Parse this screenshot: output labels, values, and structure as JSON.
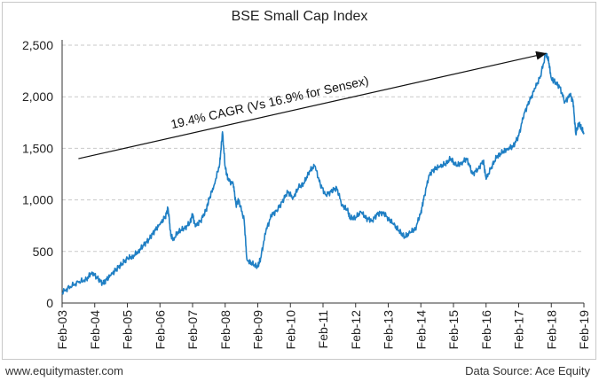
{
  "footer": {
    "left": "www.equitymaster.com",
    "right": "Data Source: Ace Equity"
  },
  "chart_data": {
    "type": "line",
    "title": "BSE Small Cap Index",
    "xlabel": "",
    "ylabel": "",
    "ylim": [
      0,
      2500
    ],
    "yticks": [
      0,
      500,
      1000,
      1500,
      2000,
      2500
    ],
    "ytick_labels": [
      "0",
      "500",
      "1,000",
      "1,500",
      "2,000",
      "2,500"
    ],
    "xlim": [
      "2003-02",
      "2019-02"
    ],
    "xtick_labels": [
      "Feb-03",
      "Feb-04",
      "Feb-05",
      "Feb-06",
      "Feb-07",
      "Feb-08",
      "Feb-09",
      "Feb-10",
      "Feb-11",
      "Feb-12",
      "Feb-13",
      "Feb-14",
      "Feb-15",
      "Feb-16",
      "Feb-17",
      "Feb-18",
      "Feb-19"
    ],
    "grid": true,
    "line_color": "#1f7fc4",
    "series": [
      {
        "x": [
          "2003-02",
          "2003-05",
          "2003-08",
          "2003-11",
          "2004-01",
          "2004-03",
          "2004-05",
          "2004-06",
          "2004-08",
          "2004-10",
          "2004-12",
          "2005-02",
          "2005-04",
          "2005-06",
          "2005-08",
          "2005-10",
          "2005-12",
          "2006-02",
          "2006-04",
          "2006-05",
          "2006-06",
          "2006-07",
          "2006-09",
          "2006-11",
          "2007-01",
          "2007-02",
          "2007-03",
          "2007-05",
          "2007-07",
          "2007-08",
          "2007-10",
          "2007-12",
          "2008-01",
          "2008-02",
          "2008-03",
          "2008-05",
          "2008-06",
          "2008-07",
          "2008-09",
          "2008-10",
          "2008-12",
          "2009-02",
          "2009-03",
          "2009-05",
          "2009-07",
          "2009-09",
          "2009-11",
          "2010-01",
          "2010-03",
          "2010-05",
          "2010-07",
          "2010-09",
          "2010-11",
          "2011-01",
          "2011-03",
          "2011-05",
          "2011-07",
          "2011-09",
          "2011-11",
          "2011-12",
          "2012-02",
          "2012-04",
          "2012-06",
          "2012-08",
          "2012-10",
          "2012-12",
          "2013-02",
          "2013-04",
          "2013-06",
          "2013-08",
          "2013-10",
          "2013-12",
          "2014-02",
          "2014-03",
          "2014-05",
          "2014-07",
          "2014-09",
          "2014-11",
          "2015-01",
          "2015-03",
          "2015-05",
          "2015-07",
          "2015-09",
          "2015-11",
          "2016-01",
          "2016-02",
          "2016-04",
          "2016-06",
          "2016-08",
          "2016-10",
          "2016-12",
          "2017-02",
          "2017-04",
          "2017-06",
          "2017-08",
          "2017-10",
          "2017-12",
          "2018-01",
          "2018-02",
          "2018-03",
          "2018-05",
          "2018-07",
          "2018-09",
          "2018-10",
          "2018-11",
          "2018-12",
          "2019-01",
          "2019-02"
        ],
        "values": [
          100,
          160,
          200,
          230,
          300,
          240,
          190,
          220,
          270,
          330,
          380,
          430,
          450,
          500,
          560,
          620,
          700,
          760,
          840,
          920,
          650,
          620,
          700,
          720,
          780,
          860,
          740,
          800,
          900,
          1000,
          1150,
          1350,
          1660,
          1320,
          1200,
          1150,
          950,
          1000,
          800,
          420,
          380,
          350,
          430,
          700,
          850,
          900,
          980,
          1080,
          1020,
          1120,
          1160,
          1280,
          1330,
          1150,
          1050,
          1080,
          1120,
          950,
          900,
          820,
          830,
          880,
          820,
          800,
          860,
          880,
          820,
          760,
          700,
          640,
          680,
          720,
          880,
          1000,
          1240,
          1300,
          1320,
          1350,
          1400,
          1330,
          1360,
          1400,
          1250,
          1300,
          1380,
          1200,
          1320,
          1420,
          1460,
          1500,
          1520,
          1620,
          1840,
          1960,
          2080,
          2200,
          2420,
          2350,
          2180,
          2150,
          2100,
          1950,
          2020,
          1950,
          1640,
          1740,
          1700,
          1650
        ]
      }
    ],
    "annotation": {
      "text": "19.4% CAGR (Vs 16.9% for Sensex)",
      "arrow_from": [
        "2003-08",
        1400
      ],
      "arrow_to": [
        "2017-12",
        2420
      ]
    }
  }
}
